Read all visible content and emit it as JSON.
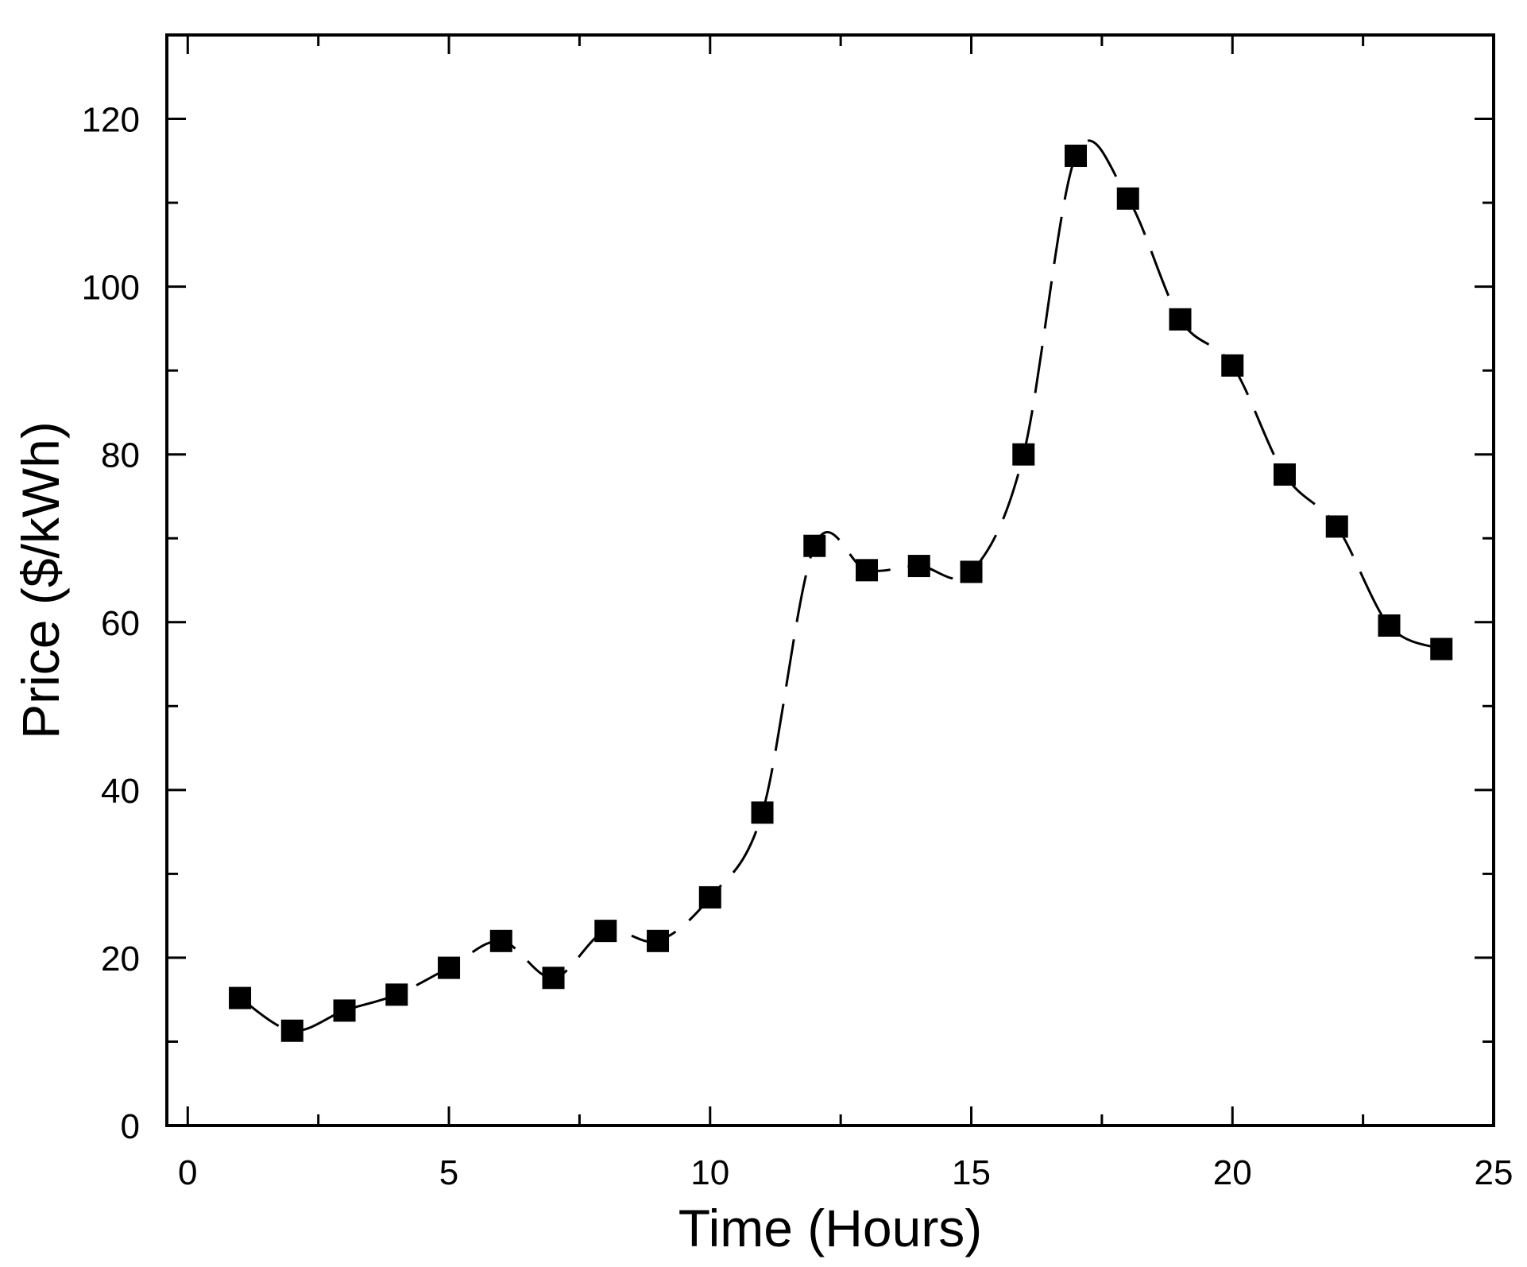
{
  "chart_data": {
    "type": "line",
    "title": "",
    "xlabel": "Time (Hours)",
    "ylabel": "Price ($/kWh)",
    "xlim": [
      -0.4,
      25
    ],
    "ylim": [
      0,
      130
    ],
    "x_ticks_major": [
      0,
      5,
      10,
      15,
      20,
      25
    ],
    "x_ticks_minor": [
      2.5,
      7.5,
      12.5,
      17.5,
      22.5
    ],
    "y_ticks_major": [
      0,
      20,
      40,
      60,
      80,
      100,
      120
    ],
    "y_ticks_minor": [
      10,
      30,
      50,
      70,
      90,
      110
    ],
    "grid": false,
    "marker": "square",
    "line_style": "dashed-smooth",
    "series": [
      {
        "x": [
          1,
          2,
          3,
          4,
          5,
          6,
          7,
          8,
          9,
          10,
          11,
          12,
          13,
          14,
          15,
          16,
          17,
          18,
          19,
          20,
          21,
          22,
          23,
          24
        ],
        "values": [
          15.2,
          11.3,
          13.7,
          15.6,
          18.8,
          22,
          17.6,
          23.2,
          22,
          27.2,
          37.3,
          69.1,
          66.2,
          66.7,
          66,
          80,
          115.6,
          110.5,
          96.1,
          90.6,
          77.6,
          71.4,
          59.6,
          56.8
        ]
      }
    ],
    "colors": {
      "line": "#000000",
      "marker": "#000000",
      "axis": "#000000",
      "background": "#ffffff"
    }
  }
}
